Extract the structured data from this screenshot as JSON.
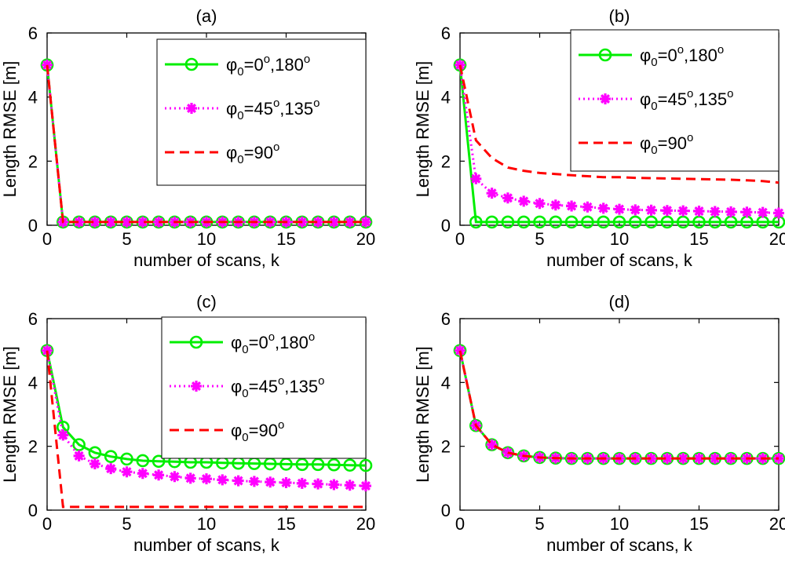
{
  "figure": {
    "background": "#ffffff"
  },
  "styles": {
    "series_colors": [
      "#00ee00",
      "#ff00ff",
      "#ff0000"
    ],
    "marker_types": [
      "circle",
      "star",
      "none"
    ],
    "line_types": [
      "solid",
      "dotted",
      "dashed"
    ]
  },
  "legend_entries": [
    {
      "phi": "φ",
      "sub": "0",
      "eq": "=0",
      "sup1": "o",
      "mid": ",180",
      "sup2": "o"
    },
    {
      "phi": "φ",
      "sub": "0",
      "eq": "=45",
      "sup1": "o",
      "mid": ",135",
      "sup2": "o"
    },
    {
      "phi": "φ",
      "sub": "0",
      "eq": "=90",
      "sup1": "o",
      "mid": "",
      "sup2": ""
    }
  ],
  "chart_data": [
    {
      "type": "line",
      "title": "(a)",
      "xlabel": "number of scans, k",
      "ylabel": "Length RMSE [m]",
      "xlim": [
        0,
        20
      ],
      "ylim": [
        0,
        6
      ],
      "xticks": [
        0,
        5,
        10,
        15,
        20
      ],
      "yticks": [
        0,
        2,
        4,
        6
      ],
      "legend": "top-right",
      "x": [
        0,
        1,
        2,
        3,
        4,
        5,
        6,
        7,
        8,
        9,
        10,
        11,
        12,
        13,
        14,
        15,
        16,
        17,
        18,
        19,
        20
      ],
      "series": [
        {
          "values": [
            5,
            0.1,
            0.1,
            0.1,
            0.1,
            0.1,
            0.1,
            0.1,
            0.1,
            0.1,
            0.1,
            0.1,
            0.1,
            0.1,
            0.1,
            0.1,
            0.1,
            0.1,
            0.1,
            0.1,
            0.1
          ]
        },
        {
          "values": [
            5,
            0.1,
            0.1,
            0.1,
            0.1,
            0.1,
            0.1,
            0.1,
            0.1,
            0.1,
            0.1,
            0.1,
            0.1,
            0.1,
            0.1,
            0.1,
            0.1,
            0.1,
            0.1,
            0.1,
            0.1
          ]
        },
        {
          "values": [
            5,
            0.1,
            0.1,
            0.1,
            0.1,
            0.1,
            0.1,
            0.1,
            0.1,
            0.1,
            0.1,
            0.1,
            0.1,
            0.1,
            0.1,
            0.1,
            0.1,
            0.1,
            0.1,
            0.1,
            0.1
          ]
        }
      ]
    },
    {
      "type": "line",
      "title": "(b)",
      "xlabel": "number of scans, k",
      "ylabel": "Length RMSE [m]",
      "xlim": [
        0,
        20
      ],
      "ylim": [
        0,
        6
      ],
      "xticks": [
        0,
        5,
        10,
        15,
        20
      ],
      "yticks": [
        0,
        2,
        4,
        6
      ],
      "legend": "top-right",
      "x": [
        0,
        1,
        2,
        3,
        4,
        5,
        6,
        7,
        8,
        9,
        10,
        11,
        12,
        13,
        14,
        15,
        16,
        17,
        18,
        19,
        20
      ],
      "series": [
        {
          "values": [
            5,
            0.1,
            0.1,
            0.1,
            0.1,
            0.1,
            0.1,
            0.1,
            0.1,
            0.1,
            0.1,
            0.1,
            0.1,
            0.1,
            0.1,
            0.1,
            0.1,
            0.1,
            0.1,
            0.1,
            0.1
          ]
        },
        {
          "values": [
            5,
            1.45,
            1.0,
            0.85,
            0.75,
            0.68,
            0.63,
            0.6,
            0.57,
            0.53,
            0.5,
            0.48,
            0.47,
            0.46,
            0.45,
            0.44,
            0.43,
            0.42,
            0.41,
            0.4,
            0.38
          ]
        },
        {
          "values": [
            5,
            2.65,
            2.1,
            1.8,
            1.7,
            1.63,
            1.6,
            1.56,
            1.53,
            1.5,
            1.5,
            1.48,
            1.47,
            1.46,
            1.45,
            1.44,
            1.43,
            1.42,
            1.4,
            1.38,
            1.33
          ]
        }
      ]
    },
    {
      "type": "line",
      "title": "(c)",
      "xlabel": "number of scans, k",
      "ylabel": "Length RMSE [m]",
      "xlim": [
        0,
        20
      ],
      "ylim": [
        0,
        6
      ],
      "xticks": [
        0,
        5,
        10,
        15,
        20
      ],
      "yticks": [
        0,
        2,
        4,
        6
      ],
      "legend": "top-right",
      "x": [
        0,
        1,
        2,
        3,
        4,
        5,
        6,
        7,
        8,
        9,
        10,
        11,
        12,
        13,
        14,
        15,
        16,
        17,
        18,
        19,
        20
      ],
      "series": [
        {
          "values": [
            5,
            2.6,
            2.05,
            1.8,
            1.68,
            1.6,
            1.55,
            1.53,
            1.52,
            1.5,
            1.5,
            1.48,
            1.47,
            1.46,
            1.45,
            1.44,
            1.43,
            1.43,
            1.42,
            1.41,
            1.4
          ]
        },
        {
          "values": [
            5,
            2.35,
            1.7,
            1.45,
            1.3,
            1.2,
            1.15,
            1.1,
            1.05,
            1.0,
            0.98,
            0.95,
            0.92,
            0.9,
            0.88,
            0.86,
            0.84,
            0.82,
            0.8,
            0.78,
            0.76
          ]
        },
        {
          "values": [
            5,
            0.1,
            0.1,
            0.1,
            0.1,
            0.1,
            0.1,
            0.1,
            0.1,
            0.1,
            0.1,
            0.1,
            0.1,
            0.1,
            0.1,
            0.1,
            0.1,
            0.1,
            0.1,
            0.1,
            0.1
          ]
        }
      ]
    },
    {
      "type": "line",
      "title": "(d)",
      "xlabel": "number of scans, k",
      "ylabel": "Length RMSE [m]",
      "xlim": [
        0,
        20
      ],
      "ylim": [
        0,
        6
      ],
      "xticks": [
        0,
        5,
        10,
        15,
        20
      ],
      "yticks": [
        0,
        2,
        4,
        6
      ],
      "legend": "none",
      "x": [
        0,
        1,
        2,
        3,
        4,
        5,
        6,
        7,
        8,
        9,
        10,
        11,
        12,
        13,
        14,
        15,
        16,
        17,
        18,
        19,
        20
      ],
      "series": [
        {
          "values": [
            5,
            2.65,
            2.05,
            1.8,
            1.7,
            1.65,
            1.63,
            1.62,
            1.62,
            1.62,
            1.62,
            1.62,
            1.62,
            1.62,
            1.62,
            1.62,
            1.62,
            1.62,
            1.62,
            1.62,
            1.62
          ]
        },
        {
          "values": [
            5,
            2.65,
            2.05,
            1.8,
            1.7,
            1.65,
            1.63,
            1.62,
            1.62,
            1.62,
            1.62,
            1.62,
            1.62,
            1.62,
            1.62,
            1.62,
            1.62,
            1.62,
            1.62,
            1.62,
            1.62
          ]
        },
        {
          "values": [
            5,
            2.65,
            2.05,
            1.8,
            1.7,
            1.65,
            1.63,
            1.62,
            1.62,
            1.62,
            1.62,
            1.62,
            1.62,
            1.62,
            1.62,
            1.62,
            1.62,
            1.62,
            1.62,
            1.62,
            1.62
          ]
        }
      ]
    }
  ]
}
